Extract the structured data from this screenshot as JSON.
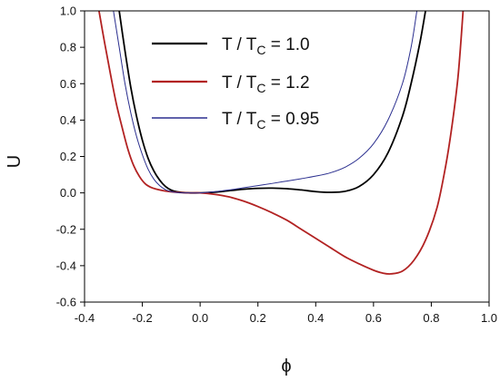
{
  "chart_data": {
    "type": "line",
    "xlabel": "ϕ",
    "ylabel": "U",
    "xlim": [
      -0.4,
      1.0
    ],
    "ylim": [
      -0.6,
      1.0
    ],
    "xticks": [
      -0.4,
      -0.2,
      0.0,
      0.2,
      0.4,
      0.6,
      0.8,
      1.0
    ],
    "yticks": [
      -0.6,
      -0.4,
      -0.2,
      0.0,
      0.2,
      0.4,
      0.6,
      0.8,
      1.0
    ],
    "xtick_labels": [
      "-0.4",
      "-0.2",
      "0.0",
      "0.2",
      "0.4",
      "0.6",
      "0.8",
      "1.0"
    ],
    "ytick_labels": [
      "-0.6",
      "-0.4",
      "-0.2",
      "0.0",
      "0.2",
      "0.4",
      "0.6",
      "0.8",
      "1.0"
    ],
    "grid": false,
    "legend_position": "top-center",
    "series": [
      {
        "name": "T / T_C = 1.0",
        "legend_main": "T / T",
        "legend_sub": "C",
        "legend_tail": " = 1.0",
        "color": "#000000",
        "x": [
          -0.28,
          -0.26,
          -0.24,
          -0.22,
          -0.2,
          -0.18,
          -0.16,
          -0.14,
          -0.12,
          -0.1,
          -0.08,
          -0.05,
          0.0,
          0.05,
          0.1,
          0.15,
          0.2,
          0.25,
          0.3,
          0.35,
          0.4,
          0.45,
          0.5,
          0.55,
          0.6,
          0.65,
          0.7,
          0.73,
          0.76,
          0.78
        ],
        "y": [
          1.0,
          0.78,
          0.58,
          0.42,
          0.29,
          0.19,
          0.12,
          0.07,
          0.035,
          0.015,
          0.006,
          0.001,
          0.0,
          0.004,
          0.012,
          0.02,
          0.025,
          0.026,
          0.023,
          0.016,
          0.007,
          0.003,
          0.008,
          0.035,
          0.1,
          0.22,
          0.42,
          0.6,
          0.82,
          1.0
        ]
      },
      {
        "name": "T / T_C = 1.2",
        "legend_main": "T / T",
        "legend_sub": "C",
        "legend_tail": " = 1.2",
        "color": "#b22222",
        "x": [
          -0.35,
          -0.33,
          -0.31,
          -0.29,
          -0.27,
          -0.25,
          -0.23,
          -0.21,
          -0.19,
          -0.17,
          -0.15,
          -0.12,
          -0.08,
          -0.04,
          0.0,
          0.05,
          0.1,
          0.15,
          0.2,
          0.25,
          0.3,
          0.35,
          0.4,
          0.45,
          0.5,
          0.55,
          0.6,
          0.63,
          0.66,
          0.7,
          0.74,
          0.78,
          0.82,
          0.85,
          0.87,
          0.89,
          0.9,
          0.91
        ],
        "y": [
          1.0,
          0.82,
          0.65,
          0.49,
          0.36,
          0.24,
          0.15,
          0.09,
          0.05,
          0.03,
          0.02,
          0.01,
          0.003,
          0.0,
          0.0,
          -0.008,
          -0.022,
          -0.045,
          -0.075,
          -0.11,
          -0.15,
          -0.2,
          -0.25,
          -0.3,
          -0.35,
          -0.39,
          -0.425,
          -0.44,
          -0.445,
          -0.43,
          -0.37,
          -0.26,
          -0.08,
          0.15,
          0.35,
          0.6,
          0.78,
          1.0
        ]
      },
      {
        "name": "T / T_C = 0.95",
        "legend_main": "T / T",
        "legend_sub": "C",
        "legend_tail": " = 0.95",
        "color": "#2b2f8f",
        "x": [
          -0.3,
          -0.28,
          -0.26,
          -0.24,
          -0.22,
          -0.2,
          -0.18,
          -0.16,
          -0.14,
          -0.12,
          -0.1,
          -0.08,
          -0.05,
          0.0,
          0.05,
          0.1,
          0.15,
          0.2,
          0.25,
          0.3,
          0.35,
          0.4,
          0.45,
          0.5,
          0.55,
          0.6,
          0.65,
          0.7,
          0.73,
          0.75
        ],
        "y": [
          1.0,
          0.8,
          0.6,
          0.44,
          0.31,
          0.21,
          0.13,
          0.075,
          0.04,
          0.018,
          0.007,
          0.002,
          0.0,
          0.0,
          0.006,
          0.016,
          0.028,
          0.04,
          0.052,
          0.065,
          0.078,
          0.092,
          0.11,
          0.14,
          0.19,
          0.27,
          0.4,
          0.6,
          0.8,
          1.0
        ]
      }
    ]
  }
}
